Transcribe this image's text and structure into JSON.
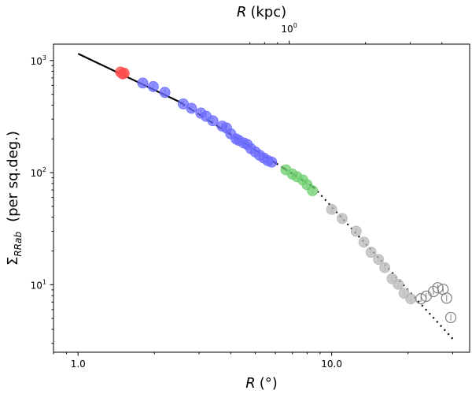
{
  "chart_data": {
    "type": "scatter",
    "x_scale": "log",
    "y_scale": "log",
    "xlim": [
      0.8,
      35
    ],
    "ylim": [
      2.5,
      1400
    ],
    "xlabel": "R (°)",
    "xlabel_main": "R",
    "xlabel_unit": "(°)",
    "ylabel": "Σ_RRab (per sq.deg.)",
    "ylabel_symbol": "Σ",
    "ylabel_subscript": "RRab",
    "ylabel_unit": "(per sq.deg.)",
    "top_xlabel": "R (kpc)",
    "top_xlabel_main": "R",
    "top_xlabel_unit": "(kpc)",
    "top_axis": {
      "tick_label_base": "10",
      "tick_label_exp": "0",
      "tick_position_deg": 6.8
    },
    "x_ticks": [
      {
        "value": 1,
        "label": "1.0"
      },
      {
        "value": 10,
        "label": "10.0"
      }
    ],
    "y_ticks": [
      {
        "value": 10,
        "base": "10",
        "exp": "1"
      },
      {
        "value": 100,
        "base": "10",
        "exp": "2"
      },
      {
        "value": 1000,
        "base": "10",
        "exp": "3"
      }
    ],
    "grid": false,
    "legend": "none",
    "series": [
      {
        "style": "red",
        "color": "#ff4d4d",
        "points": [
          [
            1.47,
            790
          ],
          [
            1.5,
            760
          ],
          [
            1.52,
            770
          ]
        ]
      },
      {
        "style": "blue",
        "color": "#6b6bff",
        "points": [
          [
            1.8,
            630
          ],
          [
            1.98,
            585
          ],
          [
            2.2,
            520
          ],
          [
            2.6,
            410
          ],
          [
            2.8,
            375
          ],
          [
            3.05,
            340
          ],
          [
            3.2,
            318
          ],
          [
            3.4,
            290
          ],
          [
            3.7,
            260
          ],
          [
            3.85,
            250
          ],
          [
            4.0,
            222
          ],
          [
            4.2,
            200
          ],
          [
            4.3,
            194
          ],
          [
            4.5,
            184
          ],
          [
            4.65,
            178
          ],
          [
            4.8,
            164
          ],
          [
            5.0,
            153
          ],
          [
            5.2,
            143
          ],
          [
            5.4,
            135
          ],
          [
            5.6,
            128
          ],
          [
            5.8,
            124
          ]
        ]
      },
      {
        "style": "green",
        "color": "#6fcf6f",
        "points": [
          [
            6.6,
            106
          ],
          [
            7.0,
            97
          ],
          [
            7.3,
            92
          ],
          [
            7.7,
            86
          ],
          [
            8.0,
            78
          ],
          [
            8.4,
            69
          ]
        ]
      },
      {
        "style": "grey",
        "color": "#b8b8b8",
        "points": [
          [
            10.0,
            47
          ],
          [
            11.0,
            39
          ],
          [
            12.5,
            30
          ],
          [
            13.4,
            24
          ],
          [
            14.3,
            19.5
          ],
          [
            15.3,
            16.8
          ],
          [
            16.2,
            14.2
          ],
          [
            17.3,
            11.3
          ],
          [
            18.3,
            10.1
          ],
          [
            19.3,
            8.4
          ],
          [
            20.5,
            7.5
          ]
        ]
      },
      {
        "style": "open",
        "color": "#808080",
        "points": [
          [
            22.5,
            7.5
          ],
          [
            23.6,
            7.9
          ],
          [
            25.2,
            8.7
          ],
          [
            26.2,
            9.4
          ],
          [
            27.5,
            9.1
          ],
          [
            28.4,
            7.6
          ],
          [
            29.5,
            5.1
          ]
        ]
      }
    ],
    "fit_lines": [
      {
        "style": "solid",
        "points": [
          [
            1.0,
            1150
          ],
          [
            2.5,
            430
          ]
        ]
      },
      {
        "style": "dashed",
        "points": [
          [
            2.5,
            430
          ],
          [
            8.5,
            74
          ]
        ]
      },
      {
        "style": "dotted",
        "points": [
          [
            8.5,
            74
          ],
          [
            30.0,
            3.3
          ]
        ]
      }
    ]
  }
}
